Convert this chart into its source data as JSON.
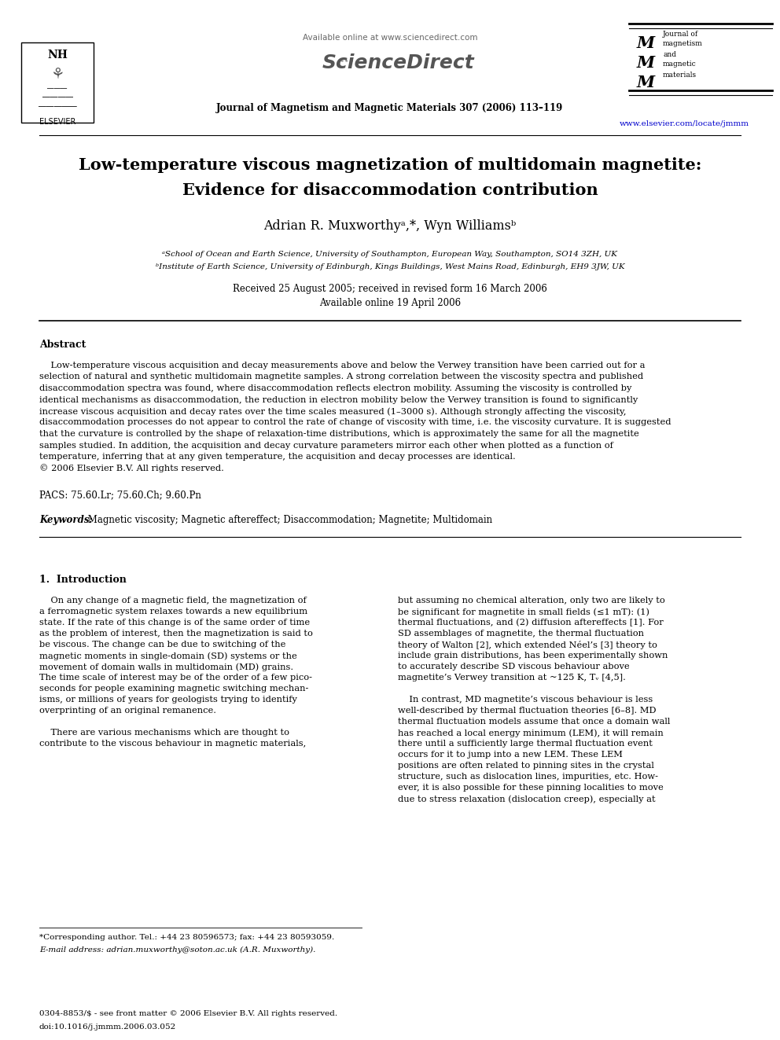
{
  "title_line1": "Low-temperature viscous magnetization of multidomain magnetite:",
  "title_line2": "Evidence for disaccommodation contribution",
  "authors": "Adrian R. Muxworthyᵃ,*, Wyn Williamsᵇ",
  "affil_a": "ᵃSchool of Ocean and Earth Science, University of Southampton, European Way, Southampton, SO14 3ZH, UK",
  "affil_b": "ᵇInstitute of Earth Science, University of Edinburgh, Kings Buildings, West Mains Road, Edinburgh, EH9 3JW, UK",
  "received": "Received 25 August 2005; received in revised form 16 March 2006",
  "available": "Available online 19 April 2006",
  "journal_header": "Journal of Magnetism and Magnetic Materials 307 (2006) 113–119",
  "available_online": "Available online at www.sciencedirect.com",
  "sciencedirect": "ScienceDirect",
  "url": "www.elsevier.com/locate/jmmm",
  "abstract_title": "Abstract",
  "abstract_indent": "    Low-temperature viscous acquisition and decay measurements above and below the Verwey transition have been carried out for a",
  "abstract_line2": "selection of natural and synthetic multidomain magnetite samples. A strong correlation between the viscosity spectra and published",
  "abstract_line3": "disaccommodation spectra was found, where disaccommodation reflects electron mobility. Assuming the viscosity is controlled by",
  "abstract_line4": "identical mechanisms as disaccommodation, the reduction in electron mobility below the Verwey transition is found to significantly",
  "abstract_line5": "increase viscous acquisition and decay rates over the time scales measured (1–3000 s). Although strongly affecting the viscosity,",
  "abstract_line6": "disaccommodation processes do not appear to control the rate of change of viscosity with time, i.e. the viscosity curvature. It is suggested",
  "abstract_line7": "that the curvature is controlled by the shape of relaxation-time distributions, which is approximately the same for all the magnetite",
  "abstract_line8": "samples studied. In addition, the acquisition and decay curvature parameters mirror each other when plotted as a function of",
  "abstract_line9": "temperature, inferring that at any given temperature, the acquisition and decay processes are identical.",
  "abstract_copyright": "© 2006 Elsevier B.V. All rights reserved.",
  "pacs": "PACS: 75.60.Lr; 75.60.Ch; 9.60.Pn",
  "keywords_label": "Keywords:",
  "keywords_text": " Magnetic viscosity; Magnetic aftereffect; Disaccommodation; Magnetite; Multidomain",
  "section1_title": "1.  Introduction",
  "col1_p1_indent": "    On any change of a magnetic field, the magnetization of",
  "col1_p1_l2": "a ferromagnetic system relaxes towards a new equilibrium",
  "col1_p1_l3": "state. If the rate of this change is of the same order of time",
  "col1_p1_l4": "as the problem of interest, then the magnetization is said to",
  "col1_p1_l5": "be viscous. The change can be due to switching of the",
  "col1_p1_l6": "magnetic moments in single-domain (SD) systems or the",
  "col1_p1_l7": "movement of domain walls in multidomain (MD) grains.",
  "col1_p1_l8": "The time scale of interest may be of the order of a few pico-",
  "col1_p1_l9": "seconds for people examining magnetic switching mechan-",
  "col1_p1_l10": "isms, or millions of years for geologists trying to identify",
  "col1_p1_l11": "overprinting of an original remanence.",
  "col1_p2_indent": "    There are various mechanisms which are thought to",
  "col1_p2_l2": "contribute to the viscous behaviour in magnetic materials,",
  "col2_p1_l1": "but assuming no chemical alteration, only two are likely to",
  "col2_p1_l2": "be significant for magnetite in small fields (≤1 mT): (1)",
  "col2_p1_l3": "thermal fluctuations, and (2) diffusion aftereffects [1]. For",
  "col2_p1_l4": "SD assemblages of magnetite, the thermal fluctuation",
  "col2_p1_l5": "theory of Walton [2], which extended Néel’s [3] theory to",
  "col2_p1_l6": "include grain distributions, has been experimentally shown",
  "col2_p1_l7": "to accurately describe SD viscous behaviour above",
  "col2_p1_l8": "magnetite’s Verwey transition at ~125 K, Tᵥ [4,5].",
  "col2_p2_indent": "    In contrast, MD magnetite’s viscous behaviour is less",
  "col2_p2_l2": "well-described by thermal fluctuation theories [6–8]. MD",
  "col2_p2_l3": "thermal fluctuation models assume that once a domain wall",
  "col2_p2_l4": "has reached a local energy minimum (LEM), it will remain",
  "col2_p2_l5": "there until a sufficiently large thermal fluctuation event",
  "col2_p2_l6": "occurs for it to jump into a new LEM. These LEM",
  "col2_p2_l7": "positions are often related to pinning sites in the crystal",
  "col2_p2_l8": "structure, such as dislocation lines, impurities, etc. How-",
  "col2_p2_l9": "ever, it is also possible for these pinning localities to move",
  "col2_p2_l10": "due to stress relaxation (dislocation creep), especially at",
  "footnote_star": "*Corresponding author. Tel.: +44 23 80596573; fax: +44 23 80593059.",
  "footnote_email": "E-mail address: adrian.muxworthy@soton.ac.uk (A.R. Muxworthy).",
  "footer_left": "0304-8853/$ - see front matter © 2006 Elsevier B.V. All rights reserved.",
  "footer_doi": "doi:10.1016/j.jmmm.2006.03.052",
  "background_color": "#ffffff",
  "text_color": "#000000",
  "url_color": "#0000cc",
  "grey_color": "#666666"
}
